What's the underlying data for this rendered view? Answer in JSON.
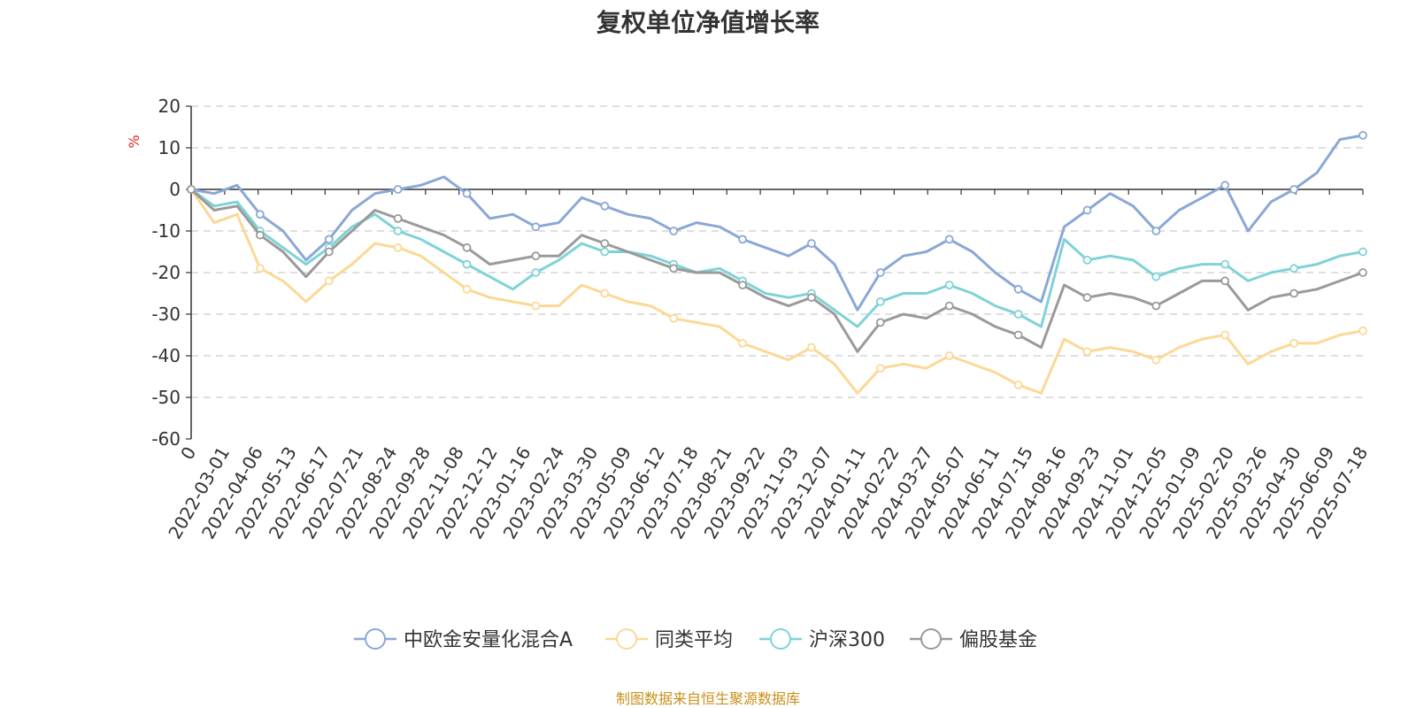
{
  "chart_data": {
    "type": "line",
    "title": "复权单位净值增长率",
    "ylabel": "%",
    "ylim": [
      -60,
      20
    ],
    "yticks": [
      20,
      10,
      0,
      -10,
      -20,
      -30,
      -40,
      -50,
      -60
    ],
    "grid": true,
    "legend_position": "bottom",
    "x_tick_labels": [
      "0",
      "2022-03-01",
      "2022-04-06",
      "2022-05-13",
      "2022-06-17",
      "2022-07-21",
      "2022-08-24",
      "2022-09-28",
      "2022-11-08",
      "2022-12-12",
      "2023-01-16",
      "2023-02-24",
      "2023-03-30",
      "2023-05-09",
      "2023-06-12",
      "2023-07-18",
      "2023-08-21",
      "2023-09-22",
      "2023-11-03",
      "2023-12-07",
      "2024-01-11",
      "2024-02-22",
      "2024-03-27",
      "2024-05-07",
      "2024-06-11",
      "2024-07-15",
      "2024-08-16",
      "2024-09-23",
      "2024-11-01",
      "2024-12-05",
      "2025-01-09",
      "2025-02-20",
      "2025-03-26",
      "2025-04-30",
      "2025-06-09",
      "2025-07-18"
    ],
    "series": [
      {
        "name": "中欧金安量化混合A",
        "color": "#8aa8d6",
        "values": [
          0,
          -1,
          1,
          -6,
          -10,
          -17,
          -12,
          -5,
          -1,
          0,
          1,
          3,
          -1,
          -7,
          -6,
          -9,
          -8,
          -2,
          -4,
          -6,
          -7,
          -10,
          -8,
          -9,
          -12,
          -14,
          -16,
          -13,
          -18,
          -29,
          -20,
          -16,
          -15,
          -12,
          -15,
          -20,
          -24,
          -27,
          -9,
          -5,
          -1,
          -4,
          -10,
          -5,
          -2,
          1,
          -10,
          -3,
          0,
          4,
          12,
          13
        ]
      },
      {
        "name": "同类平均",
        "color": "#fcd896",
        "values": [
          0,
          -8,
          -6,
          -19,
          -22,
          -27,
          -22,
          -18,
          -13,
          -14,
          -16,
          -20,
          -24,
          -26,
          -27,
          -28,
          -28,
          -23,
          -25,
          -27,
          -28,
          -31,
          -32,
          -33,
          -37,
          -39,
          -41,
          -38,
          -42,
          -49,
          -43,
          -42,
          -43,
          -40,
          -42,
          -44,
          -47,
          -49,
          -36,
          -39,
          -38,
          -39,
          -41,
          -38,
          -36,
          -35,
          -42,
          -39,
          -37,
          -37,
          -35,
          -34
        ]
      },
      {
        "name": "沪深300",
        "color": "#7ed3d6",
        "values": [
          0,
          -4,
          -3,
          -10,
          -14,
          -18,
          -14,
          -9,
          -6,
          -10,
          -12,
          -15,
          -18,
          -21,
          -24,
          -20,
          -17,
          -13,
          -15,
          -15,
          -16,
          -18,
          -20,
          -19,
          -22,
          -25,
          -26,
          -25,
          -29,
          -33,
          -27,
          -25,
          -25,
          -23,
          -25,
          -28,
          -30,
          -33,
          -12,
          -17,
          -16,
          -17,
          -21,
          -19,
          -18,
          -18,
          -22,
          -20,
          -19,
          -18,
          -16,
          -15
        ]
      },
      {
        "name": "偏股基金",
        "color": "#9a9a9a",
        "values": [
          0,
          -5,
          -4,
          -11,
          -15,
          -21,
          -15,
          -10,
          -5,
          -7,
          -9,
          -11,
          -14,
          -18,
          -17,
          -16,
          -16,
          -11,
          -13,
          -15,
          -17,
          -19,
          -20,
          -20,
          -23,
          -26,
          -28,
          -26,
          -30,
          -39,
          -32,
          -30,
          -31,
          -28,
          -30,
          -33,
          -35,
          -38,
          -23,
          -26,
          -25,
          -26,
          -28,
          -25,
          -22,
          -22,
          -29,
          -26,
          -25,
          -24,
          -22,
          -20
        ]
      }
    ]
  },
  "source_note": "制图数据来自恒生聚源数据库"
}
